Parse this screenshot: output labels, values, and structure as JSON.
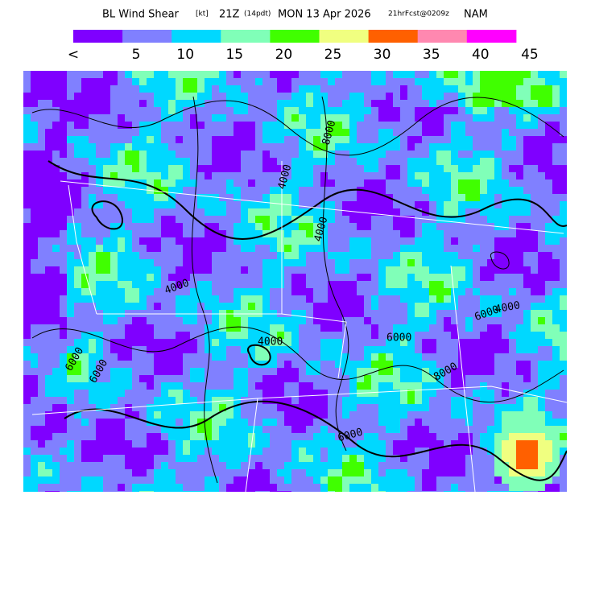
{
  "header": {
    "title": "BL Wind Shear",
    "unit": "[kt]",
    "time": "21Z",
    "local_time": "(14pdt)",
    "date": "MON 13 Apr 2026",
    "forecast": "21hrFcst@0209z",
    "model": "NAM"
  },
  "legend": {
    "colors": [
      "#7f00ff",
      "#8080ff",
      "#00d8ff",
      "#80ffb8",
      "#40ff00",
      "#f0ff80",
      "#ff6000",
      "#ff88b0",
      "#ff00ff"
    ],
    "labels": [
      "<",
      "5",
      "10",
      "15",
      "20",
      "25",
      "30",
      "35",
      "40",
      "45"
    ]
  },
  "contour_labels": [
    "8000",
    "4000",
    "4000",
    "4000",
    "6000",
    "4000",
    "6000",
    "8000",
    "6000",
    "6000",
    "6000",
    "4000"
  ]
}
